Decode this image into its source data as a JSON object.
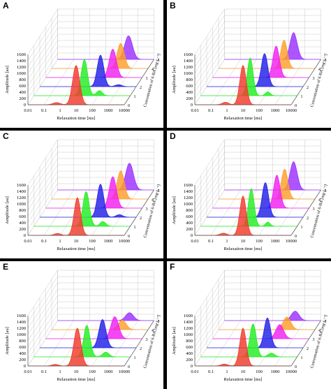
{
  "colors": [
    "#ef3b2c",
    "#22ee22",
    "#2020e8",
    "#f020f0",
    "#ff9f2a",
    "#9b30ff"
  ],
  "chart_data": [
    {
      "type": "area",
      "panel": "A",
      "xlabel": "Relaxation time [ms]",
      "ylabel": "Amplitude [au]",
      "zlabel": "Concentration of 6-BA [mg·L⁻¹]",
      "x_ticks": [
        "0.01",
        "0.1",
        "1",
        "10",
        "100",
        "1000",
        "10000"
      ],
      "y_ticks": [
        "0",
        "200",
        "400",
        "600",
        "800",
        "1000",
        "1200",
        "1400",
        "1600"
      ],
      "z_ticks": [
        "0",
        "1",
        "2",
        "3",
        "4",
        "5"
      ],
      "ylim": [
        0,
        1600
      ],
      "x_scale": "log",
      "series": [
        {
          "z": 0,
          "peaks": [
            [
              10,
              1250,
              0.22
            ],
            [
              0.6,
              70,
              0.22
            ]
          ]
        },
        {
          "z": 1,
          "peaks": [
            [
              14,
              1150,
              0.2
            ],
            [
              120,
              160,
              0.18
            ]
          ]
        },
        {
          "z": 2,
          "peaks": [
            [
              60,
              1000,
              0.2
            ],
            [
              800,
              60,
              0.2
            ]
          ]
        },
        {
          "z": 3,
          "peaks": [
            [
              150,
              900,
              0.22
            ]
          ]
        },
        {
          "z": 4,
          "peaks": [
            [
              200,
              800,
              0.22
            ]
          ]
        },
        {
          "z": 5,
          "peaks": [
            [
              260,
              750,
              0.24
            ]
          ]
        }
      ]
    },
    {
      "type": "area",
      "panel": "B",
      "xlabel": "Relaxation time [ms]",
      "ylabel": "Amplitude [au]",
      "zlabel": "Concentration of 6-BA [mg·L⁻¹]",
      "x_ticks": [
        "0.01",
        "0.1",
        "1",
        "10",
        "100",
        "1000",
        "10000"
      ],
      "y_ticks": [
        "0",
        "200",
        "400",
        "600",
        "800",
        "1000",
        "1200",
        "1400",
        "1600"
      ],
      "z_ticks": [
        "0",
        "1",
        "2",
        "3",
        "4",
        "5"
      ],
      "ylim": [
        0,
        1600
      ],
      "x_scale": "log",
      "series": [
        {
          "z": 0,
          "peaks": [
            [
              10,
              1250,
              0.2
            ],
            [
              0.8,
              80,
              0.2
            ]
          ]
        },
        {
          "z": 1,
          "peaks": [
            [
              12,
              1200,
              0.18
            ],
            [
              150,
              120,
              0.15
            ]
          ]
        },
        {
          "z": 2,
          "peaks": [
            [
              40,
              1050,
              0.2
            ]
          ]
        },
        {
          "z": 3,
          "peaks": [
            [
              90,
              1000,
              0.2
            ]
          ]
        },
        {
          "z": 4,
          "peaks": [
            [
              120,
              900,
              0.2
            ]
          ]
        },
        {
          "z": 5,
          "peaks": [
            [
              200,
              850,
              0.22
            ]
          ]
        }
      ]
    },
    {
      "type": "area",
      "panel": "C",
      "xlabel": "Relaxation time [ms]",
      "ylabel": "Amplitude [au]",
      "zlabel": "Concentration of 6-BA [mg·L⁻¹]",
      "x_ticks": [
        "0.01",
        "0.1",
        "1",
        "10",
        "100",
        "1000",
        "10000"
      ],
      "y_ticks": [
        "0",
        "200",
        "400",
        "600",
        "800",
        "1000",
        "1200",
        "1400",
        "1600"
      ],
      "z_ticks": [
        "0",
        "1",
        "2",
        "3",
        "4",
        "5"
      ],
      "ylim": [
        0,
        1600
      ],
      "x_scale": "log",
      "series": [
        {
          "z": 0,
          "peaks": [
            [
              12,
              1200,
              0.2
            ],
            [
              0.7,
              60,
              0.2
            ]
          ]
        },
        {
          "z": 1,
          "peaks": [
            [
              18,
              1100,
              0.2
            ],
            [
              200,
              150,
              0.18
            ]
          ]
        },
        {
          "z": 2,
          "peaks": [
            [
              60,
              1050,
              0.2
            ],
            [
              900,
              80,
              0.2
            ]
          ]
        },
        {
          "z": 3,
          "peaks": [
            [
              150,
              1000,
              0.22
            ]
          ]
        },
        {
          "z": 4,
          "peaks": [
            [
              200,
              900,
              0.22
            ]
          ]
        },
        {
          "z": 5,
          "peaks": [
            [
              300,
              850,
              0.24
            ]
          ]
        }
      ]
    },
    {
      "type": "area",
      "panel": "D",
      "xlabel": "Relaxation time [ms]",
      "ylabel": "Amplitude [au]",
      "zlabel": "Concentration of 6-BA [mg·L⁻¹]",
      "x_ticks": [
        "0.01",
        "0.1",
        "1",
        "10",
        "100",
        "1000",
        "10000"
      ],
      "y_ticks": [
        "0",
        "200",
        "400",
        "600",
        "800",
        "1000",
        "1200",
        "1400",
        "1600"
      ],
      "z_ticks": [
        "0",
        "1",
        "2",
        "3",
        "4",
        "5"
      ],
      "ylim": [
        0,
        1600
      ],
      "x_scale": "log",
      "series": [
        {
          "z": 0,
          "peaks": [
            [
              10,
              1250,
              0.2
            ],
            [
              0.6,
              70,
              0.2
            ]
          ]
        },
        {
          "z": 1,
          "peaks": [
            [
              14,
              1200,
              0.18
            ],
            [
              150,
              130,
              0.15
            ]
          ]
        },
        {
          "z": 2,
          "peaks": [
            [
              45,
              1100,
              0.2
            ]
          ]
        },
        {
          "z": 3,
          "peaks": [
            [
              100,
              1050,
              0.2
            ]
          ]
        },
        {
          "z": 4,
          "peaks": [
            [
              130,
              950,
              0.2
            ]
          ]
        },
        {
          "z": 5,
          "peaks": [
            [
              200,
              900,
              0.22
            ]
          ]
        }
      ]
    },
    {
      "type": "area",
      "panel": "E",
      "xlabel": "Relaxation time [ms]",
      "ylabel": "Amplitude [au]",
      "zlabel": "Concentration of 6-BA [mg·L⁻¹]",
      "x_ticks": [
        "0.01",
        "0.1",
        "1",
        "10",
        "100",
        "1000",
        "10000"
      ],
      "y_ticks": [
        "0",
        "200",
        "400",
        "600",
        "800",
        "1000",
        "1200",
        "1400",
        "1600"
      ],
      "z_ticks": [
        "0",
        "1",
        "2",
        "3",
        "4",
        "5"
      ],
      "ylim": [
        0,
        1600
      ],
      "x_scale": "log",
      "series": [
        {
          "z": 0,
          "peaks": [
            [
              12,
              1200,
              0.22
            ],
            [
              0.5,
              50,
              0.2
            ]
          ]
        },
        {
          "z": 1,
          "peaks": [
            [
              20,
              1000,
              0.2
            ],
            [
              300,
              150,
              0.2
            ]
          ]
        },
        {
          "z": 2,
          "peaks": [
            [
              80,
              900,
              0.22
            ]
          ]
        },
        {
          "z": 3,
          "peaks": [
            [
              200,
              700,
              0.24
            ]
          ]
        },
        {
          "z": 4,
          "peaks": [
            [
              250,
              300,
              0.24
            ]
          ]
        },
        {
          "z": 5,
          "peaks": [
            [
              300,
              250,
              0.24
            ]
          ]
        }
      ]
    },
    {
      "type": "area",
      "panel": "F",
      "xlabel": "Relaxation time [ms]",
      "ylabel": "Amplitude [au]",
      "zlabel": "Concentration of 6-BA [mg·L⁻¹]",
      "x_ticks": [
        "0.01",
        "0.1",
        "1",
        "10",
        "100",
        "1000",
        "10000"
      ],
      "y_ticks": [
        "0",
        "200",
        "400",
        "600",
        "800",
        "1000",
        "1200",
        "1400",
        "1600"
      ],
      "z_ticks": [
        "0",
        "1",
        "2",
        "3",
        "4",
        "5"
      ],
      "ylim": [
        0,
        1600
      ],
      "x_scale": "log",
      "series": [
        {
          "z": 0,
          "peaks": [
            [
              10,
              1200,
              0.2
            ],
            [
              0.7,
              60,
              0.2
            ]
          ]
        },
        {
          "z": 1,
          "peaks": [
            [
              18,
              1050,
              0.2
            ],
            [
              250,
              120,
              0.2
            ]
          ]
        },
        {
          "z": 2,
          "peaks": [
            [
              60,
              950,
              0.2
            ]
          ]
        },
        {
          "z": 3,
          "peaks": [
            [
              150,
              450,
              0.24
            ]
          ]
        },
        {
          "z": 4,
          "peaks": [
            [
              180,
              400,
              0.24
            ]
          ]
        },
        {
          "z": 5,
          "peaks": [
            [
              250,
              300,
              0.24
            ]
          ]
        }
      ]
    }
  ]
}
